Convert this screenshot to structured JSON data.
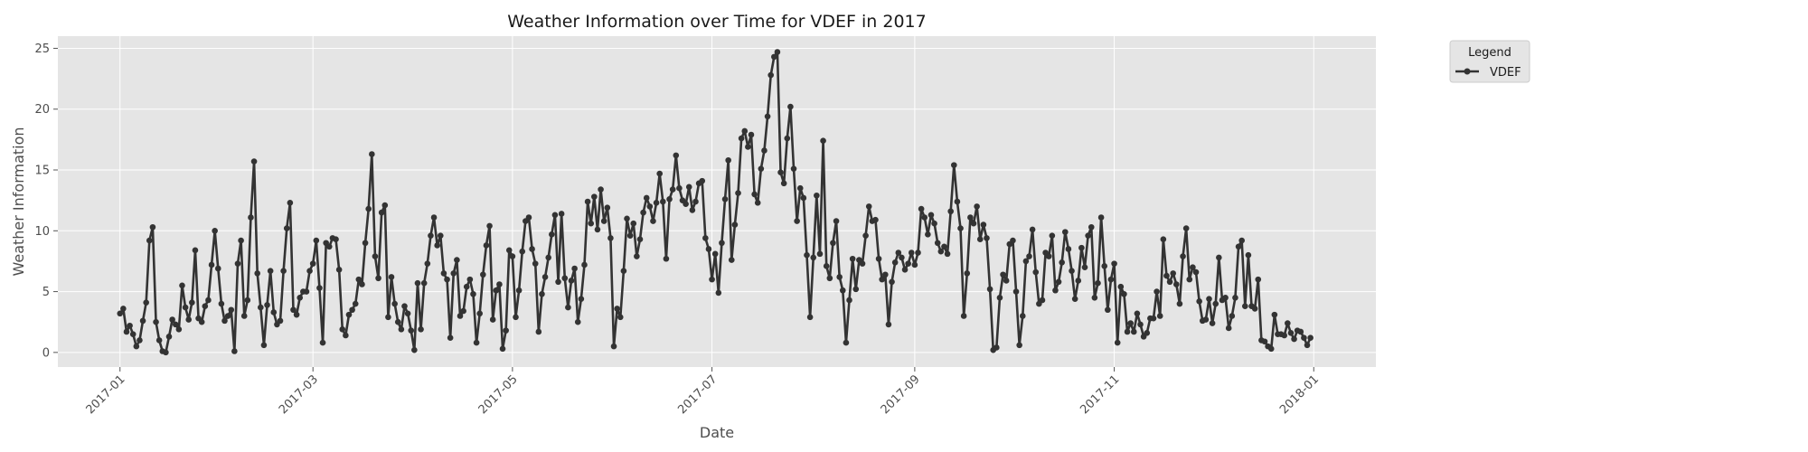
{
  "chart_data": {
    "type": "line",
    "title": "Weather Information over Time for VDEF in 2017",
    "xlabel": "Date",
    "ylabel": "Weather Information",
    "ylim": [
      -1.2,
      26.0
    ],
    "yticks": [
      0,
      5,
      10,
      15,
      20,
      25
    ],
    "xlim": [
      "2016-12-13",
      "2018-01-20"
    ],
    "xtick_labels": [
      "2017-01",
      "2017-03",
      "2017-05",
      "2017-07",
      "2017-09",
      "2017-11",
      "2018-01"
    ],
    "xtick_dates": [
      "2017-01-01",
      "2017-03-01",
      "2017-05-01",
      "2017-07-01",
      "2017-09-01",
      "2017-11-01",
      "2018-01-01"
    ],
    "grid": true,
    "legend_title": "Legend",
    "legend_placement": "outside-top-right",
    "colors": {
      "series": "#333333",
      "panel": "#e5e5e5",
      "grid": "#ffffff"
    },
    "series": [
      {
        "name": "VDEF",
        "start_date": "2017-01-01",
        "values": [
          3.2,
          3.6,
          1.7,
          2.2,
          1.5,
          0.5,
          1.0,
          2.6,
          4.1,
          9.2,
          10.3,
          2.5,
          1.0,
          0.1,
          0.0,
          1.3,
          2.7,
          2.3,
          1.9,
          5.5,
          3.7,
          2.7,
          4.1,
          8.4,
          2.8,
          2.5,
          3.8,
          4.3,
          7.2,
          10.0,
          6.9,
          4.0,
          2.6,
          3.0,
          3.5,
          0.1,
          7.3,
          9.2,
          3.0,
          4.3,
          11.1,
          15.7,
          6.5,
          3.7,
          0.6,
          3.9,
          6.7,
          3.3,
          2.3,
          2.6,
          6.7,
          10.2,
          12.3,
          3.5,
          3.1,
          4.5,
          5.0,
          5.0,
          6.7,
          7.3,
          9.2,
          5.3,
          0.8,
          9.0,
          8.7,
          9.4,
          9.3,
          6.8,
          1.9,
          1.4,
          3.1,
          3.5,
          4.0,
          6.0,
          5.6,
          9.0,
          11.8,
          16.3,
          7.9,
          6.1,
          11.5,
          12.1,
          2.9,
          6.2,
          4.0,
          2.5,
          1.9,
          3.8,
          3.2,
          1.8,
          0.2,
          5.7,
          1.9,
          5.7,
          7.3,
          9.6,
          11.1,
          8.8,
          9.6,
          6.5,
          6.0,
          1.2,
          6.5,
          7.6,
          3.0,
          3.4,
          5.4,
          6.0,
          4.8,
          0.8,
          3.2,
          6.4,
          8.8,
          10.4,
          2.7,
          5.1,
          5.6,
          0.3,
          1.8,
          8.4,
          7.9,
          2.9,
          5.1,
          8.3,
          10.8,
          11.1,
          8.5,
          7.3,
          1.7,
          4.8,
          6.2,
          7.8,
          9.7,
          11.3,
          5.8,
          11.4,
          6.1,
          3.7,
          5.9,
          6.9,
          2.5,
          4.4,
          7.2,
          12.4,
          10.6,
          12.8,
          10.1,
          13.4,
          10.8,
          11.9,
          9.4,
          0.5,
          3.6,
          2.9,
          6.7,
          11.0,
          9.6,
          10.6,
          7.9,
          9.3,
          11.5,
          12.7,
          12.0,
          10.8,
          12.3,
          14.7,
          12.4,
          7.7,
          12.6,
          13.4,
          16.2,
          13.5,
          12.5,
          12.2,
          13.6,
          11.7,
          12.4,
          13.9,
          14.1,
          9.4,
          8.5,
          6.0,
          8.1,
          4.9,
          9.0,
          12.6,
          15.8,
          7.6,
          10.5,
          13.1,
          17.6,
          18.2,
          16.9,
          17.9,
          13.0,
          12.3,
          15.1,
          16.6,
          19.4,
          22.8,
          24.3,
          24.7,
          14.8,
          13.9,
          17.6,
          20.2,
          15.1,
          10.8,
          13.5,
          12.7,
          8.0,
          2.9,
          7.8,
          12.9,
          8.1,
          17.4,
          7.1,
          6.1,
          9.0,
          10.8,
          6.2,
          5.1,
          0.8,
          4.3,
          7.7,
          5.2,
          7.6,
          7.3,
          9.6,
          12.0,
          10.8,
          10.9,
          7.7,
          6.0,
          6.4,
          2.3,
          5.8,
          7.4,
          8.2,
          7.8,
          6.8,
          7.3,
          8.2,
          7.2,
          8.2,
          11.8,
          11.1,
          9.7,
          11.3,
          10.6,
          9.0,
          8.3,
          8.7,
          8.1,
          11.6,
          15.4,
          12.4,
          10.2,
          3.0,
          6.5,
          11.1,
          10.6,
          12.0,
          9.3,
          10.5,
          9.4,
          5.2,
          0.2,
          0.4,
          4.5,
          6.4,
          5.9,
          8.9,
          9.2,
          5.0,
          0.6,
          3.0,
          7.5,
          7.9,
          10.1,
          6.6,
          4.0,
          4.3,
          8.2,
          7.9,
          9.6,
          5.1,
          5.8,
          7.4,
          9.9,
          8.5,
          6.7,
          4.4,
          5.9,
          8.6,
          7.0,
          9.6,
          10.3,
          4.5,
          5.7,
          11.1,
          7.1,
          3.5,
          6.0,
          7.3,
          0.8,
          5.4,
          4.8,
          1.7,
          2.4,
          1.7,
          3.2,
          2.3,
          1.3,
          1.6,
          2.8,
          2.8,
          5.0,
          3.0,
          9.3,
          6.3,
          5.8,
          6.5,
          5.6,
          4.0,
          7.9,
          10.2,
          6.0,
          7.0,
          6.6,
          4.2,
          2.6,
          2.7,
          4.4,
          2.4,
          4.0,
          7.8,
          4.3,
          4.5,
          2.0,
          3.0,
          4.5,
          8.7,
          9.2,
          3.8,
          8.0,
          3.8,
          3.6,
          6.0,
          1.0,
          0.9,
          0.5,
          0.3,
          3.1,
          1.5,
          1.5,
          1.4,
          2.4,
          1.6,
          1.1,
          1.8,
          1.7,
          1.2,
          0.6,
          1.2
        ]
      }
    ]
  }
}
